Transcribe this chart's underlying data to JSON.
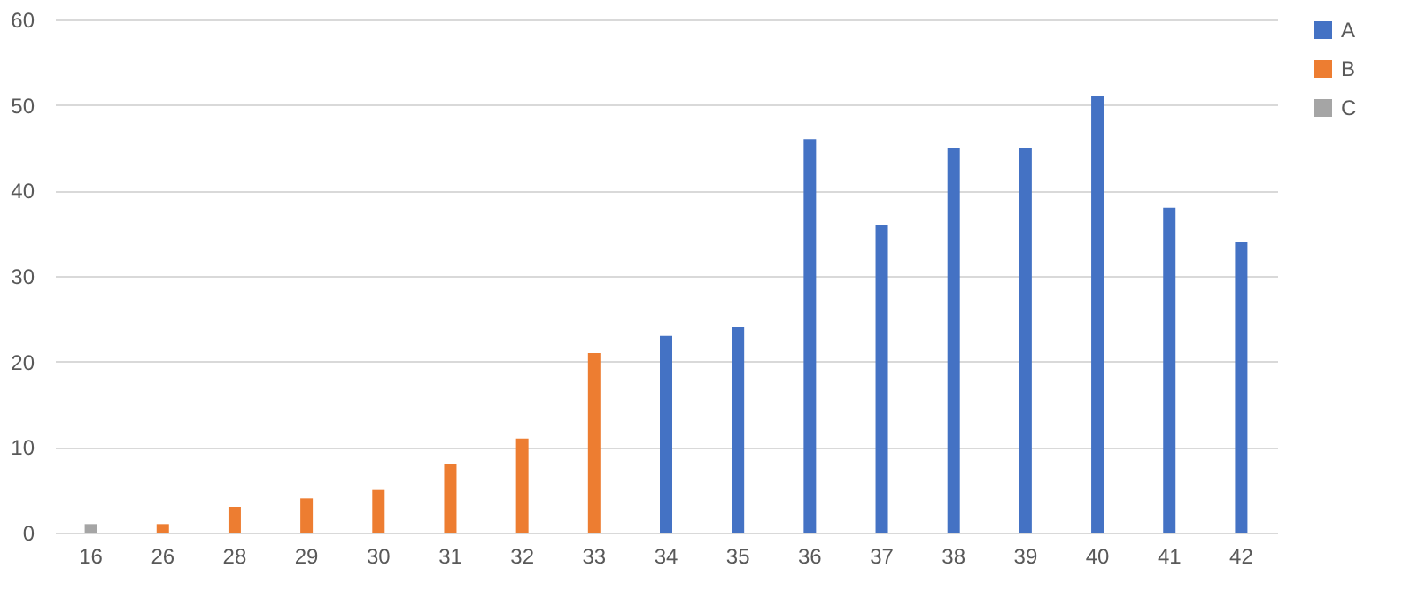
{
  "chart_data": {
    "type": "bar",
    "categories": [
      "16",
      "26",
      "28",
      "29",
      "30",
      "31",
      "32",
      "33",
      "34",
      "35",
      "36",
      "37",
      "38",
      "39",
      "40",
      "41",
      "42"
    ],
    "series": [
      {
        "name": "A",
        "color": "#4472c4",
        "values": [
          null,
          null,
          null,
          null,
          null,
          null,
          null,
          null,
          23,
          24,
          46,
          36,
          45,
          45,
          51,
          38,
          34
        ]
      },
      {
        "name": "B",
        "color": "#ed7d31",
        "values": [
          null,
          1,
          3,
          4,
          5,
          8,
          11,
          21,
          null,
          null,
          null,
          null,
          null,
          null,
          null,
          null,
          null
        ]
      },
      {
        "name": "C",
        "color": "#a5a5a5",
        "values": [
          1,
          null,
          null,
          null,
          null,
          null,
          null,
          null,
          null,
          null,
          null,
          null,
          null,
          null,
          null,
          null,
          null
        ]
      }
    ],
    "ylim": [
      0,
      60
    ],
    "yticks": [
      0,
      10,
      20,
      30,
      40,
      50,
      60
    ],
    "grid": "y",
    "legend": "right"
  }
}
